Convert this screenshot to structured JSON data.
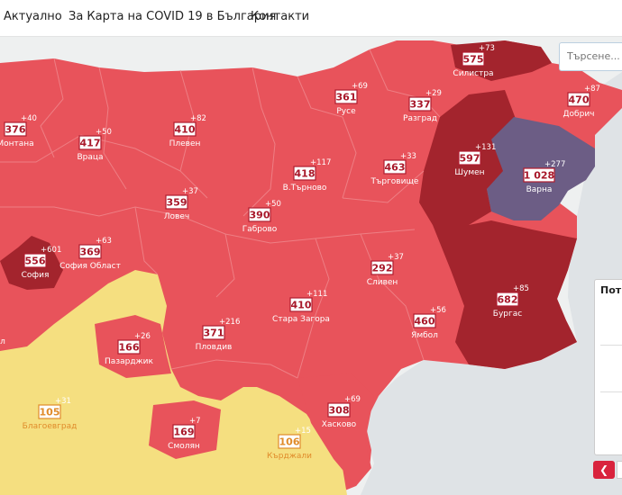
{
  "nav": {
    "links": [
      "Актуално",
      "За Карта на COVID 19 в България",
      "Контакти"
    ]
  },
  "search": {
    "placeholder": "Търсене..."
  },
  "panel": {
    "title": "Пот"
  },
  "colors": {
    "red": "#e8535b",
    "dark_red": "#a3242d",
    "purple": "#6c5d85",
    "yellow": "#f5df80",
    "sea": "#dfe3e6",
    "land_outside": "#eef0f0",
    "label_border": "#a8182a"
  },
  "provinces": [
    {
      "name": "Монтана",
      "cases": "376",
      "new": "+40"
    },
    {
      "name": "Враца",
      "cases": "417",
      "new": "+50"
    },
    {
      "name": "Плевен",
      "cases": "410",
      "new": "+82"
    },
    {
      "name": "Русе",
      "cases": "361",
      "new": "+69"
    },
    {
      "name": "Разград",
      "cases": "337",
      "new": "+29"
    },
    {
      "name": "Силистра",
      "cases": "575",
      "new": "+73"
    },
    {
      "name": "Добрич",
      "cases": "470",
      "new": "+87"
    },
    {
      "name": "Шумен",
      "cases": "597",
      "new": "+131"
    },
    {
      "name": "Варна",
      "cases": "1 028",
      "new": "+277"
    },
    {
      "name": "Търговище",
      "cases": "463",
      "new": "+33"
    },
    {
      "name": "В.Търново",
      "cases": "418",
      "new": "+117"
    },
    {
      "name": "Ловеч",
      "cases": "359",
      "new": "+37"
    },
    {
      "name": "Габрово",
      "cases": "390",
      "new": "+50"
    },
    {
      "name": "София",
      "cases": "556",
      "new": "+601"
    },
    {
      "name": "София Област",
      "cases": "369",
      "new": "+63"
    },
    {
      "name": "Сливен",
      "cases": "292",
      "new": "+37"
    },
    {
      "name": "Бургас",
      "cases": "682",
      "new": "+85"
    },
    {
      "name": "Стара Загора",
      "cases": "410",
      "new": "+111"
    },
    {
      "name": "Ямбол",
      "cases": "460",
      "new": "+56"
    },
    {
      "name": "Пловдив",
      "cases": "371",
      "new": "+216"
    },
    {
      "name": "Пазарджик",
      "cases": "166",
      "new": "+26"
    },
    {
      "name": "Благоевград",
      "cases": "105",
      "new": "+31"
    },
    {
      "name": "Смолян",
      "cases": "169",
      "new": "+7"
    },
    {
      "name": "Кърджали",
      "cases": "106",
      "new": "+15"
    },
    {
      "name": "Хасково",
      "cases": "308",
      "new": "+69"
    },
    {
      "name": "жил",
      "cases": "",
      "new": ""
    }
  ]
}
